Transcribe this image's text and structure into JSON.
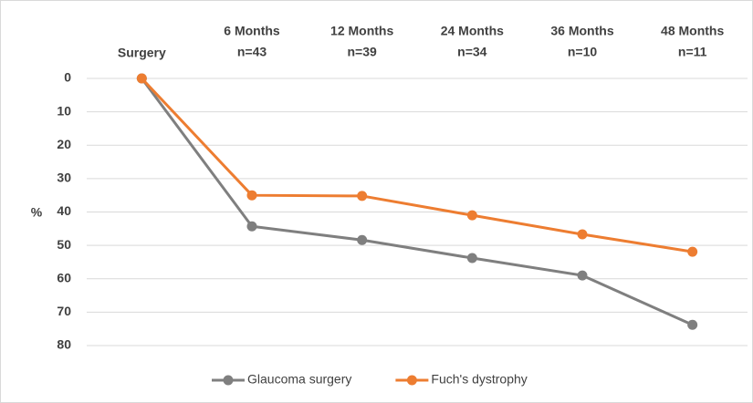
{
  "chart_data": {
    "type": "line",
    "categories": [
      "Surgery",
      "6 Months",
      "12 Months",
      "24 Months",
      "36 Months",
      "48 Months"
    ],
    "sample_sizes": [
      null,
      "n=43",
      "n=39",
      "n=34",
      "n=10",
      "n=11"
    ],
    "y_label": "%",
    "y_inverted": true,
    "ylim": [
      0,
      80
    ],
    "yticks": [
      0,
      10,
      20,
      30,
      40,
      50,
      60,
      70,
      80
    ],
    "grid": true,
    "legend": "bottom",
    "series": [
      {
        "name": "Glaucoma surgery",
        "color": "#7f7f7f",
        "values": [
          0,
          44.3,
          48.4,
          53.8,
          59,
          73.8
        ]
      },
      {
        "name": "Fuch's dystrophy",
        "color": "#ed7d31",
        "values": [
          0,
          35,
          35.2,
          41,
          46.7,
          51.9
        ]
      }
    ]
  }
}
